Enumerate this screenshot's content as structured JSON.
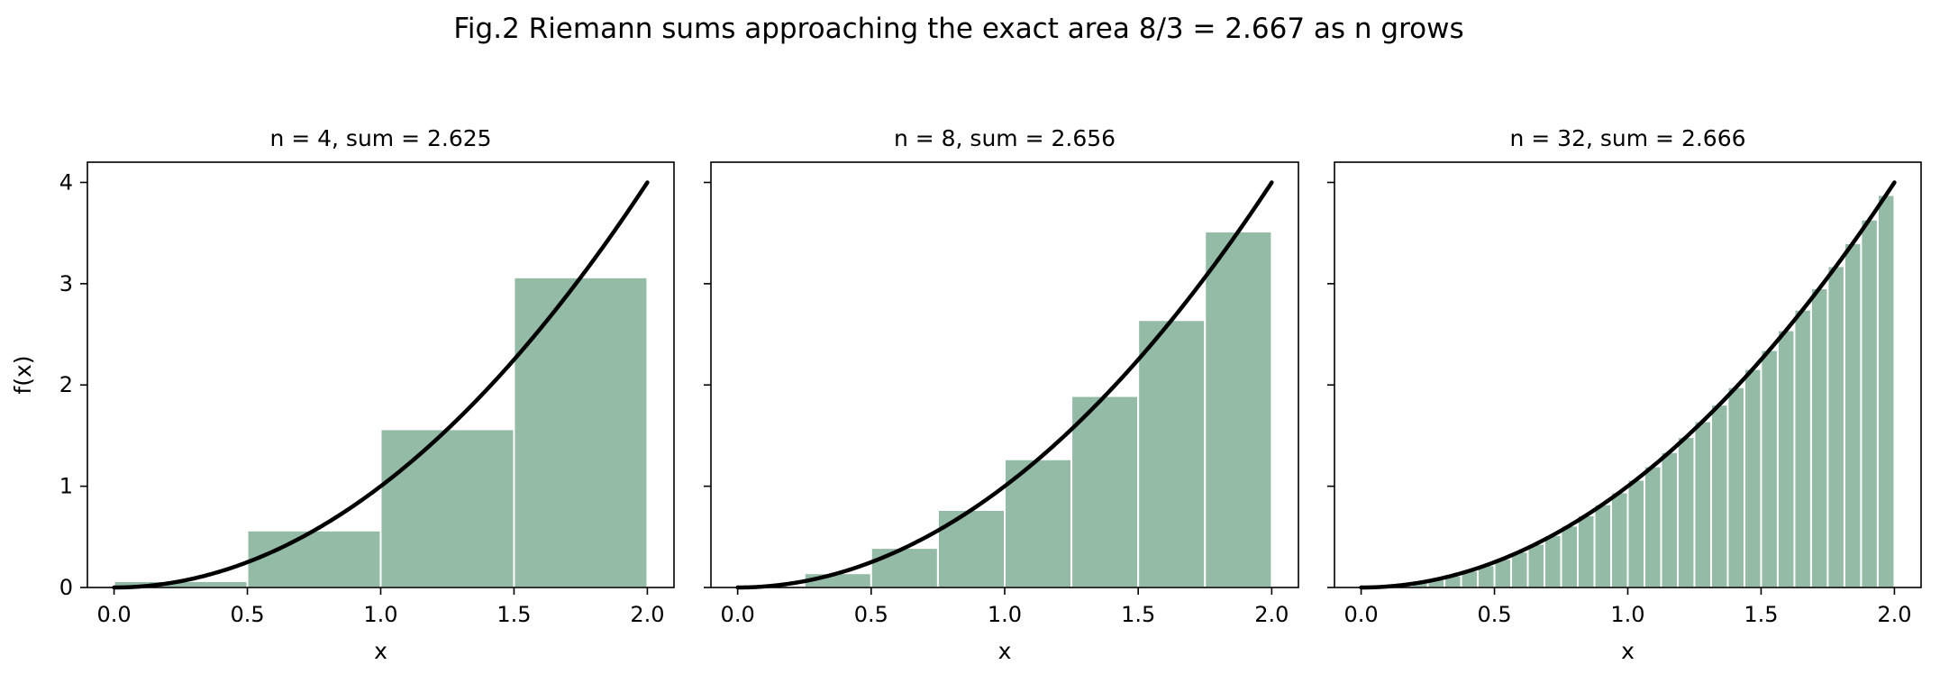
{
  "figure": {
    "title": "Fig.2 Riemann sums approaching the exact area 8/3 = 2.667 as n grows"
  },
  "chart_data": [
    {
      "type": "bar",
      "title": "n = 4,  sum = 2.625",
      "n": 4,
      "sum": 2.625,
      "xlabel": "x",
      "ylabel": "f(x)",
      "xlim": [
        -0.1,
        2.1
      ],
      "ylim": [
        0,
        4.2
      ],
      "x_ticks": [
        "0.0",
        "0.5",
        "1.0",
        "1.5",
        "2.0"
      ],
      "y_ticks": [
        "0",
        "1",
        "2",
        "3",
        "4"
      ],
      "curve": "f(x) = x^2",
      "bar_color": "#93bba6",
      "curve_color": "#000000",
      "bars": [
        {
          "x0": 0.0,
          "x1": 0.5,
          "height": 0.0625
        },
        {
          "x0": 0.5,
          "x1": 1.0,
          "height": 0.5625
        },
        {
          "x0": 1.0,
          "x1": 1.5,
          "height": 1.5625
        },
        {
          "x0": 1.5,
          "x1": 2.0,
          "height": 3.0625
        }
      ]
    },
    {
      "type": "bar",
      "title": "n = 8,  sum = 2.656",
      "n": 8,
      "sum": 2.656,
      "xlabel": "x",
      "ylabel": "",
      "xlim": [
        -0.1,
        2.1
      ],
      "ylim": [
        0,
        4.2
      ],
      "x_ticks": [
        "0.0",
        "0.5",
        "1.0",
        "1.5",
        "2.0"
      ],
      "y_ticks": [
        "0",
        "1",
        "2",
        "3",
        "4"
      ],
      "curve": "f(x) = x^2",
      "bar_color": "#93bba6",
      "curve_color": "#000000",
      "bars": [
        {
          "x0": 0.0,
          "x1": 0.25,
          "height": 0.015625
        },
        {
          "x0": 0.25,
          "x1": 0.5,
          "height": 0.140625
        },
        {
          "x0": 0.5,
          "x1": 0.75,
          "height": 0.390625
        },
        {
          "x0": 0.75,
          "x1": 1.0,
          "height": 0.765625
        },
        {
          "x0": 1.0,
          "x1": 1.25,
          "height": 1.265625
        },
        {
          "x0": 1.25,
          "x1": 1.5,
          "height": 1.890625
        },
        {
          "x0": 1.5,
          "x1": 1.75,
          "height": 2.640625
        },
        {
          "x0": 1.75,
          "x1": 2.0,
          "height": 3.515625
        }
      ]
    },
    {
      "type": "bar",
      "title": "n = 32,  sum = 2.666",
      "n": 32,
      "sum": 2.666,
      "xlabel": "x",
      "ylabel": "",
      "xlim": [
        -0.1,
        2.1
      ],
      "ylim": [
        0,
        4.2
      ],
      "x_ticks": [
        "0.0",
        "0.5",
        "1.0",
        "1.5",
        "2.0"
      ],
      "y_ticks": [
        "0",
        "1",
        "2",
        "3",
        "4"
      ],
      "curve": "f(x) = x^2",
      "bar_color": "#93bba6",
      "curve_color": "#000000",
      "bars": [
        {
          "x0": 0.0,
          "x1": 0.0625,
          "height": 0.000977
        },
        {
          "x0": 0.0625,
          "x1": 0.125,
          "height": 0.008789
        },
        {
          "x0": 0.125,
          "x1": 0.1875,
          "height": 0.024414
        },
        {
          "x0": 0.1875,
          "x1": 0.25,
          "height": 0.047852
        },
        {
          "x0": 0.25,
          "x1": 0.3125,
          "height": 0.079102
        },
        {
          "x0": 0.3125,
          "x1": 0.375,
          "height": 0.118164
        },
        {
          "x0": 0.375,
          "x1": 0.4375,
          "height": 0.165039
        },
        {
          "x0": 0.4375,
          "x1": 0.5,
          "height": 0.219727
        },
        {
          "x0": 0.5,
          "x1": 0.5625,
          "height": 0.282227
        },
        {
          "x0": 0.5625,
          "x1": 0.625,
          "height": 0.352539
        },
        {
          "x0": 0.625,
          "x1": 0.6875,
          "height": 0.430664
        },
        {
          "x0": 0.6875,
          "x1": 0.75,
          "height": 0.516602
        },
        {
          "x0": 0.75,
          "x1": 0.8125,
          "height": 0.610352
        },
        {
          "x0": 0.8125,
          "x1": 0.875,
          "height": 0.711914
        },
        {
          "x0": 0.875,
          "x1": 0.9375,
          "height": 0.821289
        },
        {
          "x0": 0.9375,
          "x1": 1.0,
          "height": 0.938477
        },
        {
          "x0": 1.0,
          "x1": 1.0625,
          "height": 1.063477
        },
        {
          "x0": 1.0625,
          "x1": 1.125,
          "height": 1.196289
        },
        {
          "x0": 1.125,
          "x1": 1.1875,
          "height": 1.336914
        },
        {
          "x0": 1.1875,
          "x1": 1.25,
          "height": 1.485352
        },
        {
          "x0": 1.25,
          "x1": 1.3125,
          "height": 1.641602
        },
        {
          "x0": 1.3125,
          "x1": 1.375,
          "height": 1.805664
        },
        {
          "x0": 1.375,
          "x1": 1.4375,
          "height": 1.977539
        },
        {
          "x0": 1.4375,
          "x1": 1.5,
          "height": 2.157227
        },
        {
          "x0": 1.5,
          "x1": 1.5625,
          "height": 2.344727
        },
        {
          "x0": 1.5625,
          "x1": 1.625,
          "height": 2.540039
        },
        {
          "x0": 1.625,
          "x1": 1.6875,
          "height": 2.743164
        },
        {
          "x0": 1.6875,
          "x1": 1.75,
          "height": 2.954102
        },
        {
          "x0": 1.75,
          "x1": 1.8125,
          "height": 3.172852
        },
        {
          "x0": 1.8125,
          "x1": 1.875,
          "height": 3.399414
        },
        {
          "x0": 1.875,
          "x1": 1.9375,
          "height": 3.633789
        },
        {
          "x0": 1.9375,
          "x1": 2.0,
          "height": 3.875977
        }
      ]
    }
  ]
}
